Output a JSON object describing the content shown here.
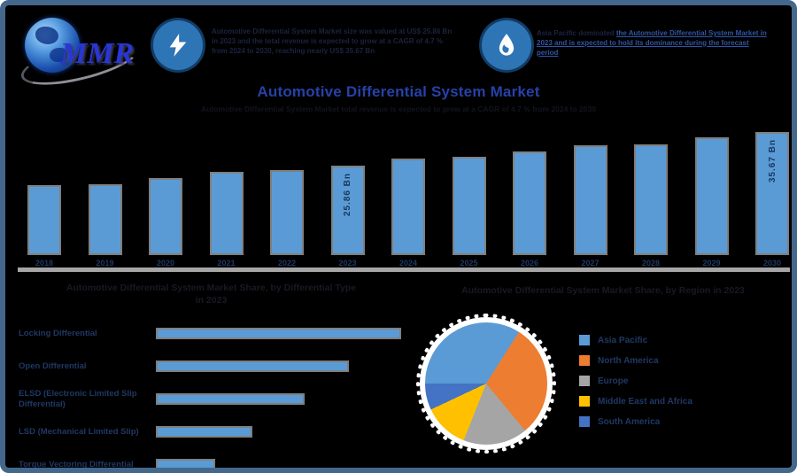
{
  "palette": {
    "frame_border": "#44688C",
    "background": "#000000",
    "bar_fill": "#5B9BD5",
    "bar_outline": "#7F7F7F",
    "axis_line": "#A6A6A6",
    "title_blue": "#2642A8",
    "label_navy": "#1F3864",
    "badge_blue": "#2E75B6",
    "link_blue": "#2F55A4",
    "logo_blue": "#2936D6"
  },
  "header": {
    "logo_text": "MMR",
    "callout1_icon": "lightning-icon",
    "callout1_text": "Automotive Differential System Market size was valued at US$ 25.86 Bn in 2023 and the total revenue is expected to grow at a CAGR of 4.7 % from 2024 to 2030, reaching nearly US$ 35.67 Bn",
    "callout2_icon": "flame-icon",
    "callout2_text_plain": "Asia Pacific dominated",
    "callout2_text_link": "the Automotive Differential System Market in 2023 and is expected to hold its dominance during the forecast period"
  },
  "title": "Automotive Differential System Market",
  "subtitle": "Automotive Differential System Market total revenue is expected to grow at a CAGR of 4.7 % from 2024 to 2030",
  "chart_data": [
    {
      "type": "bar",
      "orientation": "vertical",
      "unit": "US$ Bn",
      "categories": [
        "2018",
        "2019",
        "2020",
        "2021",
        "2022",
        "2023",
        "2024",
        "2025",
        "2026",
        "2027",
        "2028",
        "2029",
        "2030"
      ],
      "values": [
        20.2,
        20.4,
        22.3,
        24.1,
        24.5,
        25.86,
        28.0,
        28.4,
        30.1,
        31.7,
        32.1,
        34.0,
        35.67
      ],
      "data_labels": {
        "2023": "25.86 Bn",
        "2030": "35.67 Bn"
      },
      "ylim": [
        0,
        40
      ],
      "grid": false,
      "bar_color": "#5B9BD5"
    },
    {
      "type": "bar",
      "orientation": "horizontal",
      "title_line1": "Automotive Differential System Market Share, by Differential Type",
      "title_line2": "in 2023",
      "categories": [
        "Locking Differential",
        "Open Differential",
        "ELSD (Electronic Limited Slip Differential)",
        "LSD (Mechanical Limited Slip)",
        "Torque Vectoring Differential"
      ],
      "values_est_pct": [
        33,
        26,
        20,
        13,
        8
      ],
      "bar_color": "#5B9BD5"
    },
    {
      "type": "pie",
      "title": "Automotive Differential System Market Share, by Region in 2023",
      "labels": [
        "Asia Pacific",
        "North America",
        "Europe",
        "Middle East and Africa",
        "South America"
      ],
      "values_est_pct": [
        34,
        30,
        17,
        12,
        7
      ],
      "colors": [
        "#5B9BD5",
        "#ED7D31",
        "#A5A5A5",
        "#FFC000",
        "#4472C4"
      ],
      "legend_position": "right",
      "start_angle_deg": 270
    }
  ]
}
